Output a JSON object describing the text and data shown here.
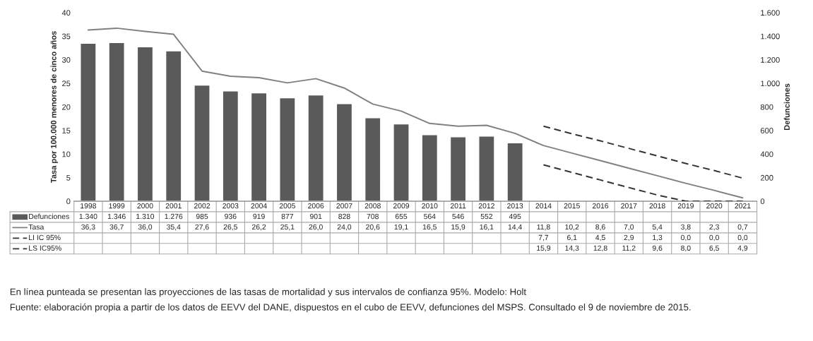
{
  "chart_data": {
    "type": "bar",
    "categories": [
      "1998",
      "1999",
      "2000",
      "2001",
      "2002",
      "2003",
      "2004",
      "2005",
      "2006",
      "2007",
      "2008",
      "2009",
      "2010",
      "2011",
      "2012",
      "2013",
      "2014",
      "2015",
      "2016",
      "2017",
      "2018",
      "2019",
      "2020",
      "2021"
    ],
    "ylabel": "Tasa por 100.000 menores de cinco años",
    "y2label": "Defunciones",
    "ylim": [
      0,
      40
    ],
    "yticks": [
      0,
      5,
      10,
      15,
      20,
      25,
      30,
      35,
      40
    ],
    "y2lim": [
      0,
      1600
    ],
    "y2ticks": [
      0,
      200,
      400,
      600,
      800,
      {
        "value": 1000,
        "label": "1.000"
      },
      {
        "value": 1200,
        "label": "1.200"
      },
      {
        "value": 1400,
        "label": "1.400"
      },
      {
        "value": 1600,
        "label": "1.600"
      }
    ],
    "grid": false,
    "legend": "bottom left",
    "series": [
      {
        "name": "Defunciones",
        "axis": "y2",
        "color": "#5a5a5a",
        "values": [
          1340,
          1346,
          1310,
          1276,
          985,
          936,
          919,
          877,
          901,
          828,
          708,
          655,
          564,
          546,
          552,
          495,
          null,
          null,
          null,
          null,
          null,
          null,
          null,
          null
        ],
        "value_labels": [
          "1.340",
          "1.346",
          "1.310",
          "1.276",
          "985",
          "936",
          "919",
          "877",
          "901",
          "828",
          "708",
          "655",
          "564",
          "546",
          "552",
          "495",
          null,
          null,
          null,
          null,
          null,
          null,
          null,
          null
        ]
      },
      {
        "name": "Tasa",
        "type": "line",
        "line_style": "solid",
        "color": "#808080",
        "values": [
          36.3,
          36.7,
          36.0,
          35.4,
          27.6,
          26.5,
          26.2,
          25.1,
          26.0,
          24.0,
          20.6,
          19.1,
          16.5,
          15.9,
          16.1,
          14.4,
          11.8,
          10.2,
          8.6,
          7.0,
          5.4,
          3.8,
          2.3,
          0.7
        ],
        "value_labels": [
          "36,3",
          "36,7",
          "36,0",
          "35,4",
          "27,6",
          "26,5",
          "26,2",
          "25,1",
          "26,0",
          "24,0",
          "20,6",
          "19,1",
          "16,5",
          "15,9",
          "16,1",
          "14,4",
          "11,8",
          "10,2",
          "8,6",
          "7,0",
          "5,4",
          "3,8",
          "2,3",
          "0,7"
        ]
      },
      {
        "name": "LI IC 95%",
        "type": "line",
        "line_style": "dashed",
        "color": "#333333",
        "values": [
          null,
          null,
          null,
          null,
          null,
          null,
          null,
          null,
          null,
          null,
          null,
          null,
          null,
          null,
          null,
          null,
          7.7,
          6.1,
          4.5,
          2.9,
          1.3,
          0.0,
          0.0,
          0.0
        ],
        "value_labels": [
          null,
          null,
          null,
          null,
          null,
          null,
          null,
          null,
          null,
          null,
          null,
          null,
          null,
          null,
          null,
          null,
          "7,7",
          "6,1",
          "4,5",
          "2,9",
          "1,3",
          "0,0",
          "0,0",
          "0,0"
        ]
      },
      {
        "name": "LS IC95%",
        "type": "line",
        "line_style": "dashed",
        "color": "#333333",
        "values": [
          null,
          null,
          null,
          null,
          null,
          null,
          null,
          null,
          null,
          null,
          null,
          null,
          null,
          null,
          null,
          null,
          15.9,
          14.3,
          12.8,
          11.2,
          9.6,
          8.0,
          6.5,
          4.9
        ],
        "value_labels": [
          null,
          null,
          null,
          null,
          null,
          null,
          null,
          null,
          null,
          null,
          null,
          null,
          null,
          null,
          null,
          null,
          "15,9",
          "14,3",
          "12,8",
          "11,2",
          "9,6",
          "8,0",
          "6,5",
          "4,9"
        ]
      }
    ],
    "annotations": [
      "En línea punteada se presentan las proyecciones de las tasas de mortalidad y sus intervalos de confianza 95%. Modelo: Holt",
      "Fuente: elaboración propia a partir de los datos de EEVV del DANE, dispuestos en el cubo de EEVV, defunciones del MSPS. Consultado el 9 de noviembre de 2015."
    ]
  }
}
